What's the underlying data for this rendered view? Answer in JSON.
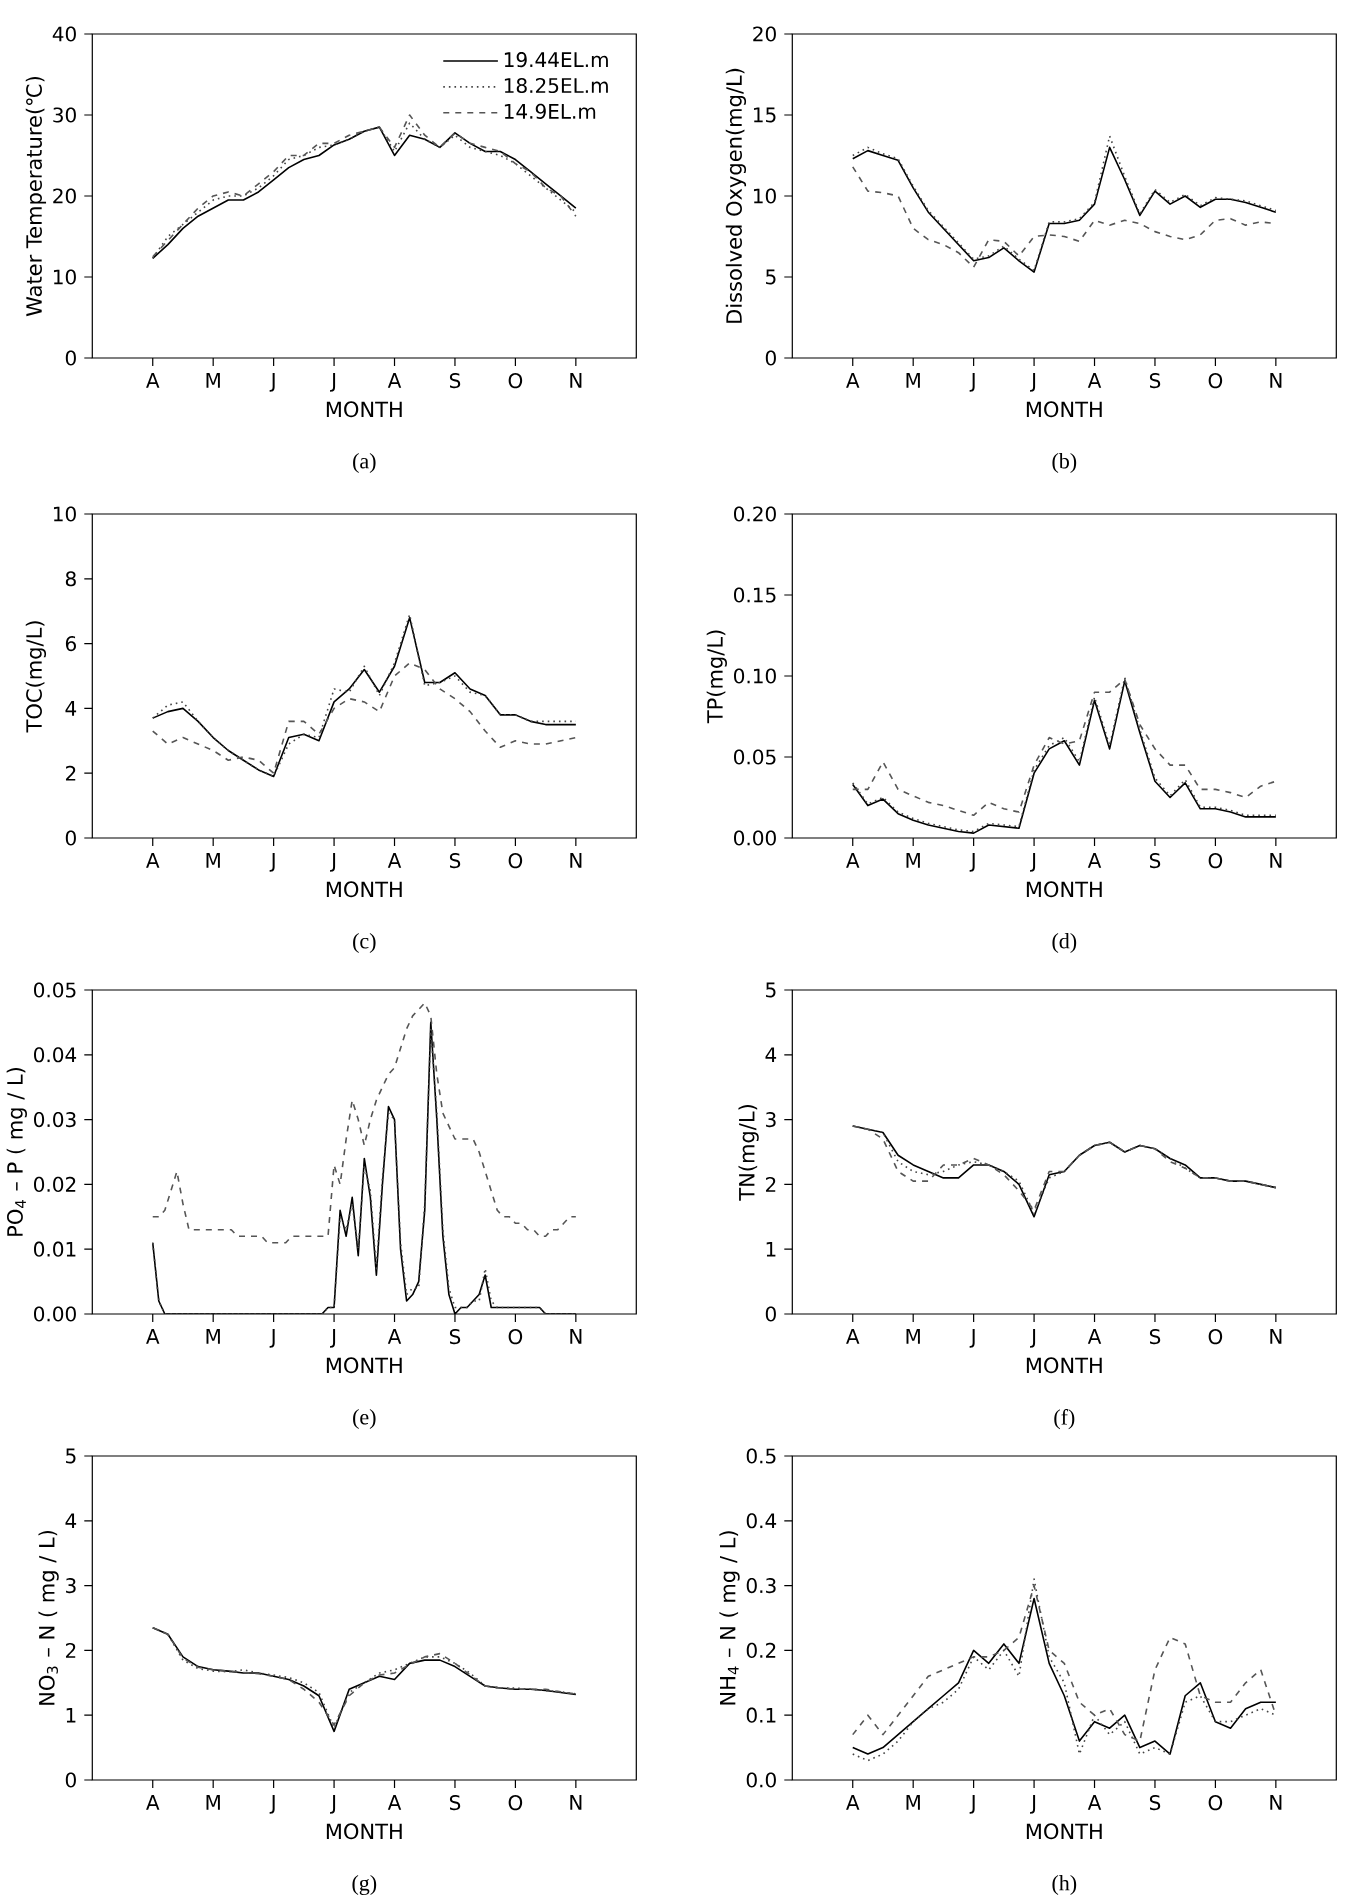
{
  "chart_data": [
    {
      "type": "line",
      "xlabel": "MONTH",
      "ylabel": "Water Temperature(℃)",
      "annotations": [
        "(a)"
      ],
      "legend": "top right",
      "categories": [
        null,
        null,
        null,
        null,
        "A",
        null,
        null,
        null,
        "M",
        null,
        null,
        null,
        "J",
        null,
        null,
        null,
        "J",
        null,
        null,
        null,
        "A",
        null,
        null,
        null,
        "S",
        null,
        null,
        null,
        "O",
        null,
        null,
        null,
        "N",
        null,
        null,
        null,
        null
      ],
      "ylim": [
        0,
        40
      ],
      "yticks": [
        0,
        10,
        20,
        30,
        40
      ],
      "series": [
        {
          "name": "19.44EL.m",
          "color": "#000000",
          "line_style": "solid",
          "values": [
            null,
            null,
            null,
            null,
            12.3,
            14,
            16,
            17.5,
            18.5,
            19.5,
            19.5,
            20.5,
            22,
            23.5,
            24.5,
            25,
            26.3,
            27,
            28,
            28.5,
            25,
            27.5,
            27,
            26,
            27.8,
            26.5,
            25.5,
            25.5,
            24.5,
            23,
            21.5,
            20,
            18.5,
            null,
            null,
            null,
            null
          ]
        },
        {
          "name": "18.25EL.m",
          "color": "#444444",
          "line_style": "dotted",
          "values": [
            null,
            null,
            null,
            null,
            12.3,
            15,
            16.5,
            18,
            19.5,
            20,
            20,
            21,
            22.5,
            24.5,
            25,
            26,
            26.3,
            27,
            28,
            28.5,
            25.5,
            29,
            27,
            26,
            27.5,
            26,
            25.5,
            25,
            24,
            22.5,
            21,
            19.5,
            18,
            null,
            null,
            null,
            null
          ]
        },
        {
          "name": "14.9EL.m",
          "color": "#555555",
          "line_style": "dashed",
          "values": [
            null,
            null,
            null,
            null,
            12.5,
            14.5,
            16.5,
            18.5,
            20,
            20.5,
            20,
            21.5,
            23,
            25,
            25,
            26.5,
            26.5,
            27.5,
            28,
            28.5,
            26,
            30,
            27.5,
            26,
            27.8,
            26.5,
            26,
            25.5,
            24,
            23,
            21,
            20,
            17.5,
            null,
            null,
            null,
            null
          ]
        }
      ]
    },
    {
      "type": "line",
      "xlabel": "MONTH",
      "ylabel": "Dissolved Oxygen(mg/L)",
      "annotations": [
        "(b)"
      ],
      "categories": [
        null,
        null,
        null,
        null,
        "A",
        null,
        null,
        null,
        "M",
        null,
        null,
        null,
        "J",
        null,
        null,
        null,
        "J",
        null,
        null,
        null,
        "A",
        null,
        null,
        null,
        "S",
        null,
        null,
        null,
        "O",
        null,
        null,
        null,
        "N",
        null,
        null,
        null,
        null
      ],
      "ylim": [
        0,
        20
      ],
      "yticks": [
        0,
        5,
        10,
        15,
        20
      ],
      "series": [
        {
          "color": "#000000",
          "line_style": "solid",
          "values": [
            null,
            null,
            null,
            null,
            12.3,
            12.8,
            12.5,
            12.2,
            10.5,
            9,
            8,
            7,
            6,
            6.2,
            6.8,
            6,
            5.3,
            8.3,
            8.3,
            8.5,
            9.5,
            13,
            11,
            8.8,
            10.3,
            9.5,
            10,
            9.3,
            9.8,
            9.8,
            9.6,
            9.3,
            9,
            null,
            null,
            null,
            null
          ]
        },
        {
          "color": "#444444",
          "line_style": "dotted",
          "values": [
            null,
            null,
            null,
            null,
            12.5,
            13,
            12.6,
            12.3,
            10.6,
            9.1,
            8.1,
            7.1,
            6.1,
            6.3,
            6.9,
            6.1,
            5.4,
            8.4,
            8.4,
            8.6,
            9.6,
            13.7,
            11.2,
            8.9,
            10.4,
            9.6,
            10.1,
            9.4,
            9.9,
            9.8,
            9.7,
            9.4,
            9.1,
            null,
            null,
            null,
            null
          ]
        },
        {
          "color": "#555555",
          "line_style": "dashed",
          "values": [
            null,
            null,
            null,
            null,
            11.8,
            10.3,
            10.2,
            10,
            8,
            7.3,
            7,
            6.5,
            5.6,
            7.3,
            7.2,
            6.3,
            7.5,
            7.6,
            7.5,
            7.2,
            8.5,
            8.2,
            8.5,
            8.3,
            7.8,
            7.5,
            7.3,
            7.6,
            8.5,
            8.6,
            8.2,
            8.4,
            8.3,
            null,
            null,
            null,
            null
          ]
        }
      ]
    },
    {
      "type": "line",
      "xlabel": "MONTH",
      "ylabel": "TOC(mg/L)",
      "annotations": [
        "(c)"
      ],
      "categories": [
        null,
        null,
        null,
        null,
        "A",
        null,
        null,
        null,
        "M",
        null,
        null,
        null,
        "J",
        null,
        null,
        null,
        "J",
        null,
        null,
        null,
        "A",
        null,
        null,
        null,
        "S",
        null,
        null,
        null,
        "O",
        null,
        null,
        null,
        "N",
        null,
        null,
        null,
        null
      ],
      "ylim": [
        0,
        10
      ],
      "yticks": [
        0,
        2,
        4,
        6,
        8,
        10
      ],
      "series": [
        {
          "color": "#000000",
          "line_style": "solid",
          "values": [
            null,
            null,
            null,
            null,
            3.7,
            3.9,
            4,
            3.6,
            3.1,
            2.7,
            2.4,
            2.1,
            1.9,
            3.1,
            3.2,
            3,
            4.2,
            4.6,
            5.2,
            4.5,
            5.3,
            6.8,
            4.8,
            4.8,
            5.1,
            4.6,
            4.4,
            3.8,
            3.8,
            3.6,
            3.5,
            3.5,
            3.5,
            null,
            null,
            null,
            null
          ]
        },
        {
          "color": "#444444",
          "line_style": "dotted",
          "values": [
            null,
            null,
            null,
            null,
            3.7,
            4.1,
            4.2,
            3.6,
            3.1,
            2.7,
            2.4,
            2.1,
            1.9,
            2.9,
            3.2,
            3.1,
            4.6,
            4.5,
            5.3,
            4.4,
            5.4,
            6.9,
            4.7,
            4.8,
            5,
            4.5,
            4.4,
            3.8,
            3.8,
            3.6,
            3.6,
            3.6,
            3.6,
            null,
            null,
            null,
            null
          ]
        },
        {
          "color": "#555555",
          "line_style": "dashed",
          "values": [
            null,
            null,
            null,
            null,
            3.3,
            2.9,
            3.1,
            2.9,
            2.7,
            2.4,
            2.5,
            2.4,
            2,
            3.6,
            3.6,
            3.2,
            4,
            4.3,
            4.2,
            3.9,
            5,
            5.4,
            5.2,
            4.6,
            4.3,
            3.9,
            3.3,
            2.8,
            3,
            2.9,
            2.9,
            3,
            3.1,
            null,
            null,
            null,
            null
          ]
        }
      ]
    },
    {
      "type": "line",
      "xlabel": "MONTH",
      "ylabel": "TP(mg/L)",
      "annotations": [
        "(d)"
      ],
      "categories": [
        null,
        null,
        null,
        null,
        "A",
        null,
        null,
        null,
        "M",
        null,
        null,
        null,
        "J",
        null,
        null,
        null,
        "J",
        null,
        null,
        null,
        "A",
        null,
        null,
        null,
        "S",
        null,
        null,
        null,
        "O",
        null,
        null,
        null,
        "N",
        null,
        null,
        null,
        null
      ],
      "ylim": [
        0,
        0.2
      ],
      "yticks": [
        {
          "value": 0,
          "label": "0.00"
        },
        0.05,
        {
          "value": 0.1,
          "label": "0.10"
        },
        0.15,
        {
          "value": 0.2,
          "label": "0.20"
        }
      ],
      "series": [
        {
          "color": "#000000",
          "line_style": "solid",
          "values": [
            null,
            null,
            null,
            null,
            0.033,
            0.02,
            0.024,
            0.015,
            0.011,
            0.008,
            0.006,
            0.004,
            0.003,
            0.008,
            0.007,
            0.006,
            0.04,
            0.055,
            0.06,
            0.045,
            0.085,
            0.055,
            0.097,
            0.065,
            0.035,
            0.025,
            0.034,
            0.018,
            0.018,
            0.016,
            0.013,
            0.013,
            0.013,
            null,
            null,
            null,
            null
          ]
        },
        {
          "color": "#444444",
          "line_style": "dotted",
          "values": [
            null,
            null,
            null,
            null,
            0.034,
            0.021,
            0.025,
            0.016,
            0.012,
            0.009,
            0.007,
            0.005,
            0.004,
            0.009,
            0.008,
            0.007,
            0.042,
            0.057,
            0.062,
            0.047,
            0.087,
            0.057,
            0.099,
            0.067,
            0.037,
            0.026,
            0.036,
            0.019,
            0.019,
            0.017,
            0.014,
            0.014,
            0.014,
            null,
            null,
            null,
            null
          ]
        },
        {
          "color": "#555555",
          "line_style": "dashed",
          "values": [
            null,
            null,
            null,
            null,
            0.03,
            0.03,
            0.047,
            0.03,
            0.026,
            0.022,
            0.02,
            0.017,
            0.014,
            0.022,
            0.018,
            0.016,
            0.045,
            0.062,
            0.058,
            0.06,
            0.09,
            0.09,
            0.098,
            0.07,
            0.055,
            0.045,
            0.045,
            0.03,
            0.03,
            0.028,
            0.025,
            0.032,
            0.035,
            null,
            null,
            null,
            null
          ]
        }
      ]
    },
    {
      "type": "line",
      "xlabel": "MONTH",
      "ylabel": "PO$_{4}$ – P ( mg / L)",
      "annotations": [
        "(e)"
      ],
      "categories": [
        null,
        null,
        null,
        null,
        null,
        null,
        null,
        null,
        null,
        null,
        "A",
        null,
        null,
        null,
        null,
        null,
        null,
        null,
        null,
        null,
        "M",
        null,
        null,
        null,
        null,
        null,
        null,
        null,
        null,
        null,
        "J",
        null,
        null,
        null,
        null,
        null,
        null,
        null,
        null,
        null,
        "J",
        null,
        null,
        null,
        null,
        null,
        null,
        null,
        null,
        null,
        "A",
        null,
        null,
        null,
        null,
        null,
        null,
        null,
        null,
        null,
        "S",
        null,
        null,
        null,
        null,
        null,
        null,
        null,
        null,
        null,
        "O",
        null,
        null,
        null,
        null,
        null,
        null,
        null,
        null,
        null,
        "N",
        null,
        null,
        null,
        null,
        null,
        null,
        null,
        null,
        null,
        null
      ],
      "ylim": [
        0,
        0.05
      ],
      "yticks": [
        {
          "value": 0,
          "label": "0.00"
        },
        0.01,
        0.02,
        0.03,
        0.04,
        0.05
      ],
      "series": [
        {
          "color": "#000000",
          "line_style": "solid",
          "values": [
            null,
            null,
            null,
            null,
            null,
            null,
            null,
            null,
            null,
            null,
            0.011,
            0.002,
            0,
            0,
            0,
            0,
            0,
            0,
            0,
            0,
            0,
            0,
            0,
            0,
            0,
            0,
            0,
            0,
            0,
            0,
            0,
            0,
            0,
            0,
            0,
            0,
            0,
            0,
            0,
            0.001,
            0.001,
            0.016,
            0.012,
            0.018,
            0.009,
            0.024,
            0.018,
            0.006,
            0.02,
            0.032,
            0.03,
            0.01,
            0.002,
            0.003,
            0.005,
            0.016,
            0.045,
            0.03,
            0.012,
            0.003,
            0,
            0.001,
            0.001,
            0.002,
            0.003,
            0.006,
            0.001,
            0.001,
            0.001,
            0.001,
            0.001,
            0.001,
            0.001,
            0.001,
            0.001,
            0,
            0,
            0,
            0,
            0,
            0,
            null,
            null,
            null,
            null,
            null,
            null,
            null,
            null,
            null,
            null
          ]
        },
        {
          "color": "#444444",
          "line_style": "dotted",
          "values": [
            null,
            null,
            null,
            null,
            null,
            null,
            null,
            null,
            null,
            null,
            0.011,
            0.002,
            0,
            0,
            0,
            0,
            0,
            0,
            0,
            0,
            0,
            0,
            0,
            0,
            0,
            0,
            0,
            0,
            0,
            0,
            0,
            0,
            0,
            0,
            0,
            0,
            0,
            0,
            0,
            0.001,
            0.001,
            0.015,
            0.013,
            0.017,
            0.01,
            0.023,
            0.019,
            0.007,
            0.021,
            0.031,
            0.03,
            0.011,
            0.003,
            0.004,
            0.004,
            0.017,
            0.044,
            0.031,
            0.013,
            0.004,
            0.001,
            0.001,
            0.001,
            0.002,
            0.002,
            0.007,
            0.002,
            0.001,
            0.001,
            0.001,
            0.001,
            0.001,
            0.001,
            0.001,
            0.001,
            0,
            0,
            0,
            0,
            0,
            0,
            null,
            null,
            null,
            null,
            null,
            null,
            null,
            null,
            null,
            null
          ]
        },
        {
          "color": "#555555",
          "line_style": "dashed",
          "values": [
            null,
            null,
            null,
            null,
            null,
            null,
            null,
            null,
            null,
            null,
            0.015,
            0.015,
            0.016,
            0.019,
            0.022,
            0.017,
            0.013,
            0.013,
            0.013,
            0.013,
            0.013,
            0.013,
            0.013,
            0.013,
            0.012,
            0.012,
            0.012,
            0.012,
            0.012,
            0.011,
            0.011,
            0.011,
            0.011,
            0.012,
            0.012,
            0.012,
            0.012,
            0.012,
            0.012,
            0.012,
            0.023,
            0.02,
            0.027,
            0.033,
            0.03,
            0.026,
            0.03,
            0.033,
            0.035,
            0.037,
            0.038,
            0.041,
            0.044,
            0.046,
            0.047,
            0.048,
            0.046,
            0.037,
            0.031,
            0.029,
            0.027,
            0.027,
            0.027,
            0.027,
            0.025,
            0.022,
            0.019,
            0.016,
            0.015,
            0.015,
            0.014,
            0.014,
            0.013,
            0.013,
            0.012,
            0.012,
            0.013,
            0.013,
            0.014,
            0.015,
            0.015,
            null,
            null,
            null,
            null,
            null,
            null,
            null,
            null,
            null,
            null
          ]
        }
      ]
    },
    {
      "type": "line",
      "xlabel": "MONTH",
      "ylabel": "TN(mg/L)",
      "annotations": [
        "(f)"
      ],
      "categories": [
        null,
        null,
        null,
        null,
        "A",
        null,
        null,
        null,
        "M",
        null,
        null,
        null,
        "J",
        null,
        null,
        null,
        "J",
        null,
        null,
        null,
        "A",
        null,
        null,
        null,
        "S",
        null,
        null,
        null,
        "O",
        null,
        null,
        null,
        "N",
        null,
        null,
        null,
        null
      ],
      "ylim": [
        0,
        5
      ],
      "yticks": [
        0,
        1,
        2,
        3,
        4,
        5
      ],
      "series": [
        {
          "color": "#000000",
          "line_style": "solid",
          "values": [
            null,
            null,
            null,
            null,
            2.9,
            2.85,
            2.8,
            2.45,
            2.3,
            2.2,
            2.1,
            2.1,
            2.3,
            2.3,
            2.2,
            2,
            1.5,
            2.15,
            2.2,
            2.45,
            2.6,
            2.65,
            2.5,
            2.6,
            2.55,
            2.4,
            2.3,
            2.1,
            2.1,
            2.05,
            2.05,
            2,
            1.95,
            null,
            null,
            null,
            null
          ]
        },
        {
          "color": "#444444",
          "line_style": "dotted",
          "values": [
            null,
            null,
            null,
            null,
            2.9,
            2.85,
            2.8,
            2.35,
            2.2,
            2.15,
            2.2,
            2.3,
            2.35,
            2.3,
            2.2,
            2.05,
            1.55,
            2.1,
            2.2,
            2.45,
            2.6,
            2.65,
            2.5,
            2.6,
            2.55,
            2.4,
            2.25,
            2.1,
            2.1,
            2.05,
            2.05,
            2,
            1.95,
            null,
            null,
            null,
            null
          ]
        },
        {
          "color": "#555555",
          "line_style": "dashed",
          "values": [
            null,
            null,
            null,
            null,
            2.9,
            2.85,
            2.7,
            2.2,
            2.05,
            2.05,
            2.3,
            2.3,
            2.4,
            2.3,
            2.15,
            1.9,
            1.6,
            2.2,
            2.2,
            2.45,
            2.6,
            2.65,
            2.5,
            2.6,
            2.55,
            2.35,
            2.25,
            2.1,
            2.1,
            2.05,
            2.05,
            2,
            1.95,
            null,
            null,
            null,
            null
          ]
        }
      ]
    },
    {
      "type": "line",
      "xlabel": "MONTH",
      "ylabel": "NO$_{3}$ – N ( mg / L)",
      "annotations": [
        "(g)"
      ],
      "categories": [
        null,
        null,
        null,
        null,
        "A",
        null,
        null,
        null,
        "M",
        null,
        null,
        null,
        "J",
        null,
        null,
        null,
        "J",
        null,
        null,
        null,
        "A",
        null,
        null,
        null,
        "S",
        null,
        null,
        null,
        "O",
        null,
        null,
        null,
        "N",
        null,
        null,
        null,
        null
      ],
      "ylim": [
        0,
        5
      ],
      "yticks": [
        0,
        1,
        2,
        3,
        4,
        5
      ],
      "series": [
        {
          "color": "#000000",
          "line_style": "solid",
          "values": [
            null,
            null,
            null,
            null,
            2.35,
            2.25,
            1.9,
            1.75,
            1.7,
            1.68,
            1.65,
            1.65,
            1.6,
            1.55,
            1.45,
            1.3,
            0.75,
            1.4,
            1.5,
            1.6,
            1.55,
            1.8,
            1.85,
            1.85,
            1.75,
            1.6,
            1.45,
            1.42,
            1.4,
            1.4,
            1.38,
            1.35,
            1.32,
            null,
            null,
            null,
            null
          ]
        },
        {
          "color": "#444444",
          "line_style": "dotted",
          "values": [
            null,
            null,
            null,
            null,
            2.35,
            2.25,
            1.85,
            1.72,
            1.68,
            1.67,
            1.7,
            1.65,
            1.62,
            1.58,
            1.5,
            1.35,
            0.8,
            1.35,
            1.5,
            1.65,
            1.7,
            1.8,
            1.9,
            1.9,
            1.8,
            1.65,
            1.45,
            1.42,
            1.42,
            1.4,
            1.38,
            1.36,
            1.33,
            null,
            null,
            null,
            null
          ]
        },
        {
          "color": "#555555",
          "line_style": "dashed",
          "values": [
            null,
            null,
            null,
            null,
            2.35,
            2.25,
            1.88,
            1.74,
            1.7,
            1.68,
            1.66,
            1.64,
            1.6,
            1.55,
            1.4,
            1.2,
            0.85,
            1.3,
            1.5,
            1.62,
            1.65,
            1.78,
            1.9,
            1.95,
            1.8,
            1.62,
            1.45,
            1.42,
            1.4,
            1.4,
            1.4,
            1.36,
            1.33,
            null,
            null,
            null,
            null
          ]
        }
      ]
    },
    {
      "type": "line",
      "xlabel": "MONTH",
      "ylabel": "NH$_{4}$ – N ( mg / L)",
      "annotations": [
        "(h)"
      ],
      "categories": [
        null,
        null,
        null,
        null,
        "A",
        null,
        null,
        null,
        "M",
        null,
        null,
        null,
        "J",
        null,
        null,
        null,
        "J",
        null,
        null,
        null,
        "A",
        null,
        null,
        null,
        "S",
        null,
        null,
        null,
        "O",
        null,
        null,
        null,
        "N",
        null,
        null,
        null,
        null
      ],
      "ylim": [
        0,
        0.5
      ],
      "yticks": [
        {
          "value": 0,
          "label": "0.0"
        },
        0.1,
        0.2,
        0.3,
        0.4,
        0.5
      ],
      "series": [
        {
          "color": "#000000",
          "line_style": "solid",
          "values": [
            null,
            null,
            null,
            null,
            0.05,
            0.04,
            0.05,
            0.07,
            0.09,
            0.11,
            0.13,
            0.15,
            0.2,
            0.18,
            0.21,
            0.18,
            0.28,
            0.18,
            0.13,
            0.06,
            0.09,
            0.08,
            0.1,
            0.05,
            0.06,
            0.04,
            0.13,
            0.15,
            0.09,
            0.08,
            0.11,
            0.12,
            0.12,
            null,
            null,
            null,
            null
          ]
        },
        {
          "color": "#444444",
          "line_style": "dotted",
          "values": [
            null,
            null,
            null,
            null,
            0.04,
            0.03,
            0.04,
            0.06,
            0.09,
            0.11,
            0.12,
            0.14,
            0.19,
            0.17,
            0.2,
            0.16,
            0.31,
            0.19,
            0.15,
            0.04,
            0.1,
            0.07,
            0.09,
            0.04,
            0.05,
            0.04,
            0.12,
            0.13,
            0.09,
            0.09,
            0.1,
            0.11,
            0.1,
            null,
            null,
            null,
            null
          ]
        },
        {
          "color": "#555555",
          "line_style": "dashed",
          "values": [
            null,
            null,
            null,
            null,
            0.07,
            0.1,
            0.07,
            0.1,
            0.13,
            0.16,
            0.17,
            0.18,
            0.19,
            0.19,
            0.2,
            0.22,
            0.3,
            0.2,
            0.18,
            0.12,
            0.1,
            0.11,
            0.07,
            0.06,
            0.17,
            0.22,
            0.21,
            0.13,
            0.12,
            0.12,
            0.15,
            0.17,
            0.1,
            null,
            null,
            null,
            null
          ]
        }
      ]
    }
  ]
}
